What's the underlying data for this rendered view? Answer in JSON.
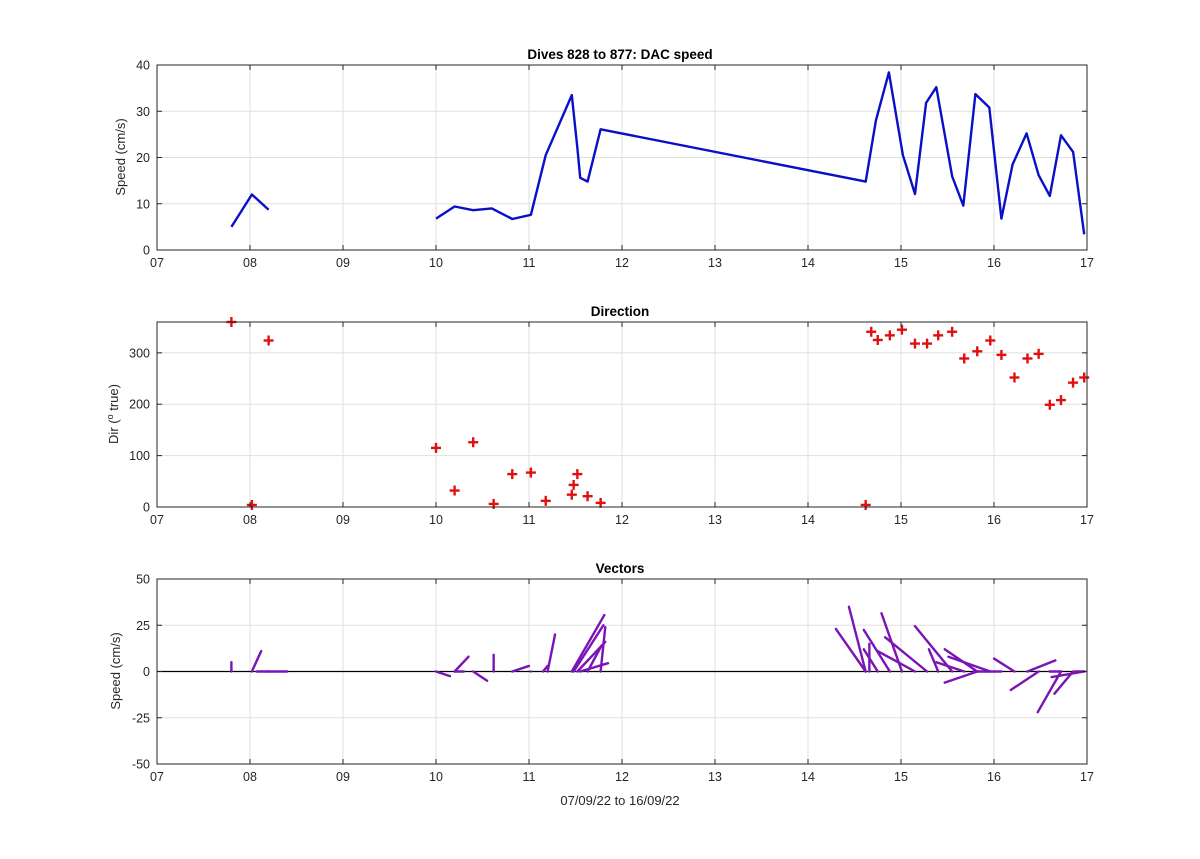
{
  "colors": {
    "speed_line": "#0a0fc8",
    "direction_marker": "#e01010",
    "vectors": "#7a14b4",
    "grid": "#dfdfdf",
    "axis": "#262626"
  },
  "chart_data": [
    {
      "type": "line",
      "title": "Dives 828 to 877: DAC speed",
      "xlabel": "",
      "ylabel": "Speed (cm/s)",
      "xlim": [
        7,
        17
      ],
      "ylim": [
        0,
        40
      ],
      "xticks": [
        7,
        8,
        9,
        10,
        11,
        12,
        13,
        14,
        15,
        16,
        17
      ],
      "xticklabels": [
        "07",
        "08",
        "09",
        "10",
        "11",
        "12",
        "13",
        "14",
        "15",
        "16",
        "17"
      ],
      "yticks": [
        0,
        10,
        20,
        30,
        40
      ],
      "yticklabels": [
        "0",
        "10",
        "20",
        "30",
        "40"
      ],
      "grid": true,
      "series": [
        {
          "segments": [
            [
              [
                7.8,
                5
              ],
              [
                8.02,
                12
              ],
              [
                8.2,
                8.7
              ]
            ],
            [
              [
                10.0,
                6.8
              ],
              [
                10.2,
                9.4
              ],
              [
                10.4,
                8.6
              ],
              [
                10.6,
                9.0
              ],
              [
                10.82,
                6.7
              ],
              [
                11.02,
                7.6
              ],
              [
                11.18,
                20.5
              ],
              [
                11.46,
                33.5
              ],
              [
                11.52,
                22
              ],
              [
                11.55,
                15.6
              ],
              [
                11.63,
                14.8
              ],
              [
                11.77,
                26.1
              ],
              [
                14.62,
                14.8
              ],
              [
                14.73,
                28
              ],
              [
                14.87,
                38.4
              ],
              [
                15.02,
                20.5
              ],
              [
                15.15,
                12.1
              ],
              [
                15.27,
                31.8
              ],
              [
                15.38,
                35.2
              ],
              [
                15.55,
                15.9
              ],
              [
                15.67,
                9.6
              ],
              [
                15.8,
                33.7
              ],
              [
                15.95,
                30.8
              ],
              [
                16.08,
                6.8
              ],
              [
                16.2,
                18.5
              ],
              [
                16.35,
                25.2
              ],
              [
                16.48,
                16.2
              ],
              [
                16.6,
                11.7
              ],
              [
                16.72,
                24.8
              ],
              [
                16.85,
                21.2
              ],
              [
                16.97,
                3.4
              ]
            ]
          ]
        }
      ]
    },
    {
      "type": "scatter",
      "title": "Direction",
      "xlabel": "",
      "ylabel": "Dir (º true)",
      "ylabel_main": "Dir (",
      "ylabel_sup": "o",
      "ylabel_rest": " true)",
      "xlim": [
        7,
        17
      ],
      "ylim": [
        0,
        360
      ],
      "xticks": [
        7,
        8,
        9,
        10,
        11,
        12,
        13,
        14,
        15,
        16,
        17
      ],
      "xticklabels": [
        "07",
        "08",
        "09",
        "10",
        "11",
        "12",
        "13",
        "14",
        "15",
        "16",
        "17"
      ],
      "yticks": [
        0,
        100,
        200,
        300
      ],
      "yticklabels": [
        "0",
        "100",
        "200",
        "300"
      ],
      "grid": true,
      "marker": "+",
      "x": [
        7.8,
        8.02,
        8.2,
        10.0,
        10.2,
        10.4,
        10.62,
        10.82,
        11.02,
        11.18,
        11.46,
        11.48,
        11.52,
        11.63,
        11.77,
        14.62,
        14.68,
        14.75,
        14.88,
        15.01,
        15.15,
        15.28,
        15.4,
        15.55,
        15.68,
        15.82,
        15.96,
        16.08,
        16.22,
        16.36,
        16.48,
        16.6,
        16.72,
        16.85,
        16.97
      ],
      "y": [
        360,
        4,
        324,
        115,
        32,
        126,
        6,
        64,
        67,
        12,
        24,
        43,
        64,
        21,
        8,
        4,
        341,
        325,
        334,
        345,
        318,
        318,
        334,
        341,
        289,
        303,
        324,
        296,
        252,
        289,
        298,
        199,
        208,
        242,
        252
      ]
    },
    {
      "type": "vectors",
      "title": "Vectors",
      "xlabel": "07/09/22 to 16/09/22",
      "ylabel": "Speed (cm/s)",
      "xlim": [
        7,
        17
      ],
      "ylim": [
        -50,
        50
      ],
      "xticks": [
        7,
        8,
        9,
        10,
        11,
        12,
        13,
        14,
        15,
        16,
        17
      ],
      "xticklabels": [
        "07",
        "08",
        "09",
        "10",
        "11",
        "12",
        "13",
        "14",
        "15",
        "16",
        "17"
      ],
      "yticks": [
        -50,
        -25,
        0,
        25,
        50
      ],
      "yticklabels": [
        "-50",
        "-25",
        "0",
        "25",
        "50"
      ],
      "grid": true,
      "vectors": [
        {
          "x": 7.8,
          "u": 0.0,
          "v": 5.0
        },
        {
          "x": 8.02,
          "u": 0.1,
          "v": 11.0
        },
        {
          "x": 8.2,
          "u": 0.2,
          "v": 0.0
        },
        {
          "x": 8.2,
          "u": 0.0,
          "v": 0.0
        },
        {
          "x": 8.07,
          "u": 0.13,
          "v": 0.0
        },
        {
          "x": 10.0,
          "u": 0.15,
          "v": -2.5
        },
        {
          "x": 10.2,
          "u": 0.1,
          "v": 0.0
        },
        {
          "x": 10.2,
          "u": 0.15,
          "v": 8.0
        },
        {
          "x": 10.4,
          "u": 0.15,
          "v": -5.0
        },
        {
          "x": 10.62,
          "u": 0.0,
          "v": 9.0
        },
        {
          "x": 10.82,
          "u": 0.18,
          "v": 3.0
        },
        {
          "x": 11.02,
          "u": 0.0,
          "v": 0.0
        },
        {
          "x": 11.15,
          "u": 0.05,
          "v": 3.0
        },
        {
          "x": 11.2,
          "u": 0.08,
          "v": 20.0
        },
        {
          "x": 11.46,
          "u": 0.35,
          "v": 30.5
        },
        {
          "x": 11.48,
          "u": 0.32,
          "v": 25.0
        },
        {
          "x": 11.52,
          "u": 0.3,
          "v": 16.0
        },
        {
          "x": 11.55,
          "u": 0.3,
          "v": 4.5
        },
        {
          "x": 11.63,
          "u": 0.15,
          "v": 14.0
        },
        {
          "x": 11.77,
          "u": 0.05,
          "v": 24.0
        },
        {
          "x": 14.62,
          "u": -0.32,
          "v": 23.0
        },
        {
          "x": 14.62,
          "u": -0.18,
          "v": 35.0
        },
        {
          "x": 14.66,
          "u": 0.0,
          "v": 15.0
        },
        {
          "x": 14.75,
          "u": -0.15,
          "v": 12.0
        },
        {
          "x": 14.88,
          "u": -0.28,
          "v": 22.5
        },
        {
          "x": 15.01,
          "u": -0.22,
          "v": 31.5
        },
        {
          "x": 15.15,
          "u": -0.4,
          "v": 11.0
        },
        {
          "x": 15.28,
          "u": -0.45,
          "v": 18.5
        },
        {
          "x": 15.4,
          "u": -0.1,
          "v": 12.0
        },
        {
          "x": 15.55,
          "u": -0.4,
          "v": 24.5
        },
        {
          "x": 15.68,
          "u": -0.3,
          "v": 5.0
        },
        {
          "x": 15.82,
          "u": -0.35,
          "v": 12.0
        },
        {
          "x": 15.96,
          "u": -0.45,
          "v": 8.0
        },
        {
          "x": 16.08,
          "u": -0.3,
          "v": 0.0
        },
        {
          "x": 16.22,
          "u": -0.22,
          "v": 7.0
        },
        {
          "x": 16.36,
          "u": 0.3,
          "v": 6.0
        },
        {
          "x": 16.48,
          "u": -0.3,
          "v": -10.0
        },
        {
          "x": 16.6,
          "u": 0.12,
          "v": 0.0
        },
        {
          "x": 16.6,
          "u": 0.0,
          "v": 0.0
        },
        {
          "x": 16.72,
          "u": -0.25,
          "v": -22.0
        },
        {
          "x": 16.85,
          "u": -0.2,
          "v": -12.0
        },
        {
          "x": 16.97,
          "u": -0.35,
          "v": -3.0
        },
        {
          "x": 16.97,
          "u": -0.1,
          "v": 0.0
        },
        {
          "x": 15.82,
          "u": -0.35,
          "v": -6.0
        }
      ]
    }
  ]
}
